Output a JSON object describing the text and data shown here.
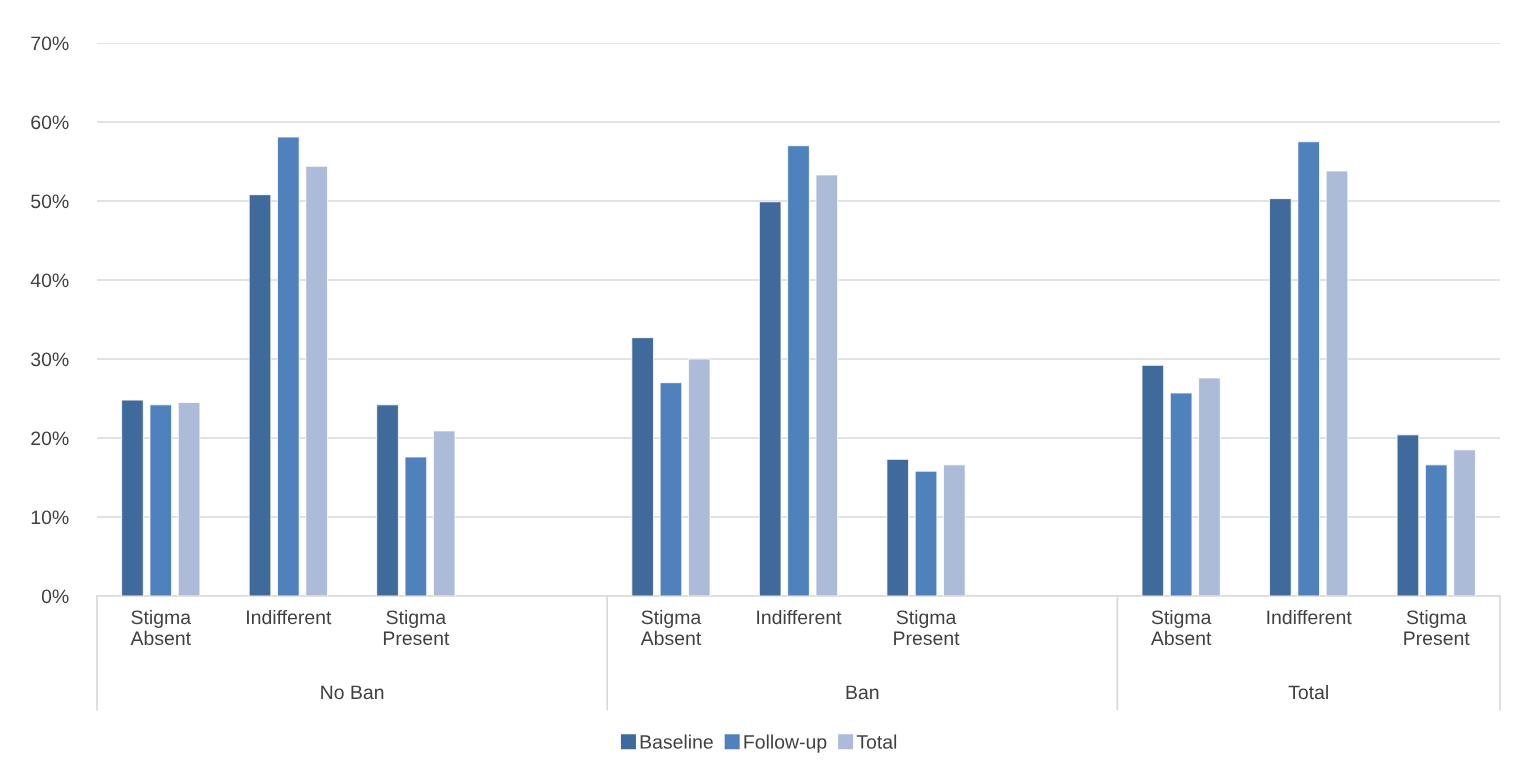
{
  "chart_data": {
    "type": "bar",
    "categories": [
      "Stigma Absent",
      "Indifferent",
      "Stigma Present",
      null,
      "Stigma Absent",
      "Indifferent",
      "Stigma Present",
      null,
      "Stigma Absent",
      "Indifferent",
      "Stigma Present"
    ],
    "series": [
      {
        "name": "Baseline",
        "color": "#406a9c",
        "values": [
          24.8,
          50.8,
          24.2,
          null,
          32.7,
          49.9,
          17.3,
          null,
          29.2,
          50.3,
          20.4
        ]
      },
      {
        "name": "Follow-up",
        "color": "#4f81bd",
        "values": [
          24.2,
          58.1,
          17.6,
          null,
          27.0,
          57.0,
          15.8,
          null,
          25.7,
          57.5,
          16.6
        ]
      },
      {
        "name": "Total",
        "color": "#abbbd8",
        "values": [
          24.5,
          54.4,
          20.9,
          null,
          30.0,
          53.3,
          16.6,
          null,
          27.6,
          53.8,
          18.5
        ]
      }
    ],
    "annotations": [
      "No Ban",
      "Ban",
      "Total"
    ],
    "ylim": [
      0,
      70
    ],
    "yticks": [
      {
        "value": 0,
        "label": "0%"
      },
      {
        "value": 10,
        "label": "10%"
      },
      {
        "value": 20,
        "label": "20%"
      },
      {
        "value": 30,
        "label": "30%"
      },
      {
        "value": 40,
        "label": "40%"
      },
      {
        "value": 50,
        "label": "50%"
      },
      {
        "value": 60,
        "label": "60%"
      },
      {
        "value": 70,
        "label": "70%"
      }
    ],
    "grid": "y",
    "legend": "bottom"
  }
}
